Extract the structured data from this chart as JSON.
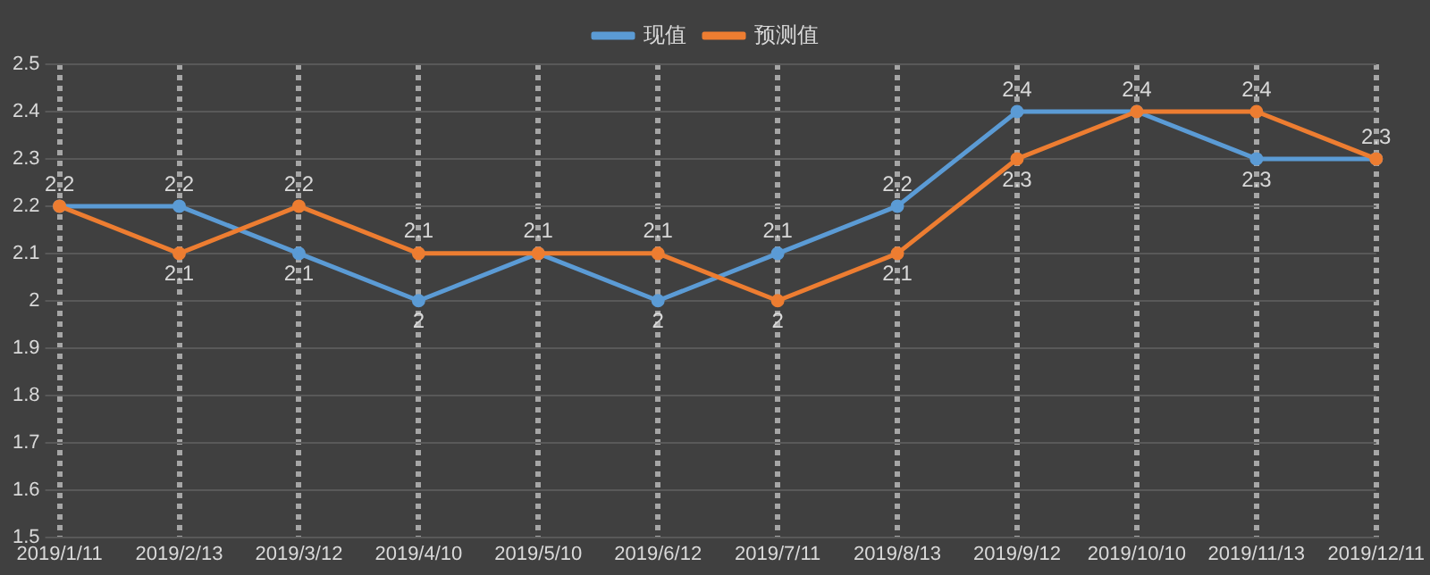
{
  "chart_data": {
    "type": "line",
    "categories": [
      "2019/1/11",
      "2019/2/13",
      "2019/3/12",
      "2019/4/10",
      "2019/5/10",
      "2019/6/12",
      "2019/7/11",
      "2019/8/13",
      "2019/9/12",
      "2019/10/10",
      "2019/11/13",
      "2019/12/11"
    ],
    "series": [
      {
        "name": "现值",
        "color": "#5b9bd5",
        "values": [
          2.2,
          2.2,
          2.1,
          2,
          2.1,
          2,
          2.1,
          2.2,
          2.4,
          2.4,
          2.3,
          2.3
        ]
      },
      {
        "name": "预测值",
        "color": "#ed7d31",
        "values": [
          2.2,
          2.1,
          2.2,
          2.1,
          2.1,
          2.1,
          2,
          2.1,
          2.3,
          2.4,
          2.4,
          2.3
        ],
        "value_labels": [
          null,
          "2.1",
          "2.2",
          "2.1",
          null,
          "2.1",
          "2",
          "2.1",
          "2.3",
          null,
          "2.4",
          null
        ]
      }
    ],
    "ylim": [
      1.5,
      2.5
    ],
    "yticks": [
      1.5,
      1.6,
      1.7,
      1.8,
      1.9,
      2,
      2.1,
      2.2,
      2.3,
      2.4,
      2.5
    ],
    "grid": true,
    "legend": "top",
    "marker": "circle",
    "line_style": "solid",
    "data_labels": true
  }
}
